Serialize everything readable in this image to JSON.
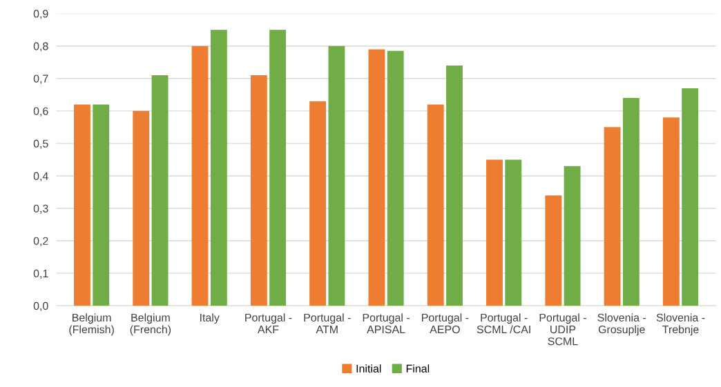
{
  "chart_data": {
    "type": "bar",
    "categories": [
      "Belgium\n(Flemish)",
      "Belgium\n(French)",
      "Italy",
      "Portugal -\nAKF",
      "Portugal -\nATM",
      "Portugal -\nAPISAL",
      "Portugal -\nAEPO",
      "Portugal -\nSCML /CAI",
      "Portugal -\nUDIP\nSCML",
      "Slovenia -\nGrosuplje",
      "Slovenia -\nTrebnje"
    ],
    "series": [
      {
        "name": "Initial",
        "color": "#ed7d31",
        "values": [
          0.62,
          0.6,
          0.8,
          0.71,
          0.63,
          0.79,
          0.62,
          0.45,
          0.34,
          0.55,
          0.58
        ]
      },
      {
        "name": "Final",
        "color": "#70ad47",
        "values": [
          0.62,
          0.71,
          0.85,
          0.85,
          0.8,
          0.785,
          0.74,
          0.45,
          0.43,
          0.64,
          0.67
        ]
      }
    ],
    "ylim": [
      0,
      0.9
    ],
    "yticks": [
      {
        "value": 0,
        "label": "0,0"
      },
      {
        "value": 0.1,
        "label": "0,1"
      },
      {
        "value": 0.2,
        "label": "0,2"
      },
      {
        "value": 0.3,
        "label": "0,3"
      },
      {
        "value": 0.4,
        "label": "0,4"
      },
      {
        "value": 0.5,
        "label": "0,5"
      },
      {
        "value": 0.6,
        "label": "0,6"
      },
      {
        "value": 0.7,
        "label": "0,7"
      },
      {
        "value": 0.8,
        "label": "0,8"
      },
      {
        "value": 0.9,
        "label": "0,9"
      }
    ],
    "grid": "y",
    "legend": "bottom"
  }
}
